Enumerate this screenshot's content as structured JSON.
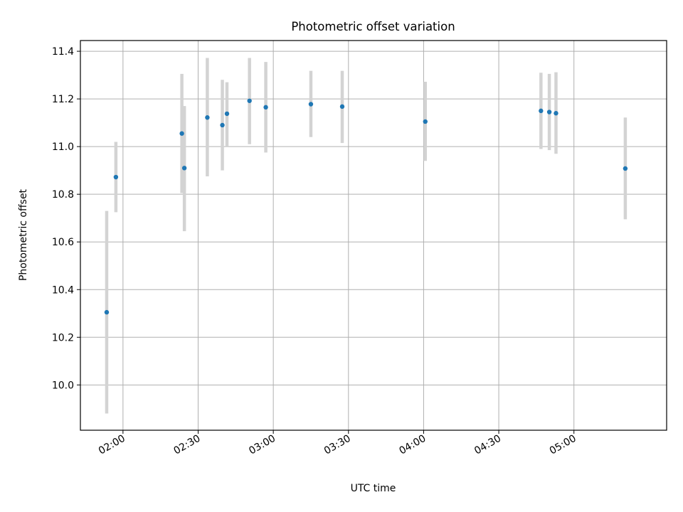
{
  "chart_data": {
    "type": "scatter",
    "title": "Photometric offset variation",
    "xlabel": "UTC time",
    "ylabel": "Photometric offset",
    "x_unit": "UTC time (HH:MM)",
    "xlim": [
      "01:43",
      "05:37"
    ],
    "ylim": [
      9.81,
      11.445
    ],
    "x_ticks": [
      "02:00",
      "02:30",
      "03:00",
      "03:30",
      "04:00",
      "04:30",
      "05:00"
    ],
    "y_ticks": [
      10.0,
      10.2,
      10.4,
      10.6,
      10.8,
      11.0,
      11.2,
      11.4
    ],
    "y_tick_labels": [
      "10.0",
      "10.2",
      "10.4",
      "10.6",
      "10.8",
      "11.0",
      "11.2",
      "11.4"
    ],
    "grid": true,
    "point_color": "#1f77b4",
    "errorbar_color": "#d3d3d3",
    "points": [
      {
        "x": "01:53:30",
        "y": 10.305,
        "low": 9.88,
        "high": 10.73
      },
      {
        "x": "01:57:10",
        "y": 10.872,
        "low": 10.725,
        "high": 11.02
      },
      {
        "x": "02:23:30",
        "y": 11.055,
        "low": 10.805,
        "high": 11.305
      },
      {
        "x": "02:24:30",
        "y": 10.91,
        "low": 10.645,
        "high": 11.17
      },
      {
        "x": "02:33:40",
        "y": 11.122,
        "low": 10.875,
        "high": 11.372
      },
      {
        "x": "02:39:40",
        "y": 11.09,
        "low": 10.9,
        "high": 11.28
      },
      {
        "x": "02:41:30",
        "y": 11.138,
        "low": 11.0,
        "high": 11.27
      },
      {
        "x": "02:50:30",
        "y": 11.192,
        "low": 11.01,
        "high": 11.372
      },
      {
        "x": "02:57:00",
        "y": 11.165,
        "low": 10.975,
        "high": 11.355
      },
      {
        "x": "03:15:00",
        "y": 11.178,
        "low": 11.04,
        "high": 11.318
      },
      {
        "x": "03:27:30",
        "y": 11.168,
        "low": 11.015,
        "high": 11.318
      },
      {
        "x": "04:00:40",
        "y": 11.105,
        "low": 10.94,
        "high": 11.272
      },
      {
        "x": "04:46:50",
        "y": 11.15,
        "low": 10.99,
        "high": 11.31
      },
      {
        "x": "04:50:10",
        "y": 11.145,
        "low": 10.985,
        "high": 11.305
      },
      {
        "x": "04:52:50",
        "y": 11.14,
        "low": 10.97,
        "high": 11.312
      },
      {
        "x": "05:20:30",
        "y": 10.908,
        "low": 10.695,
        "high": 11.122
      }
    ]
  }
}
